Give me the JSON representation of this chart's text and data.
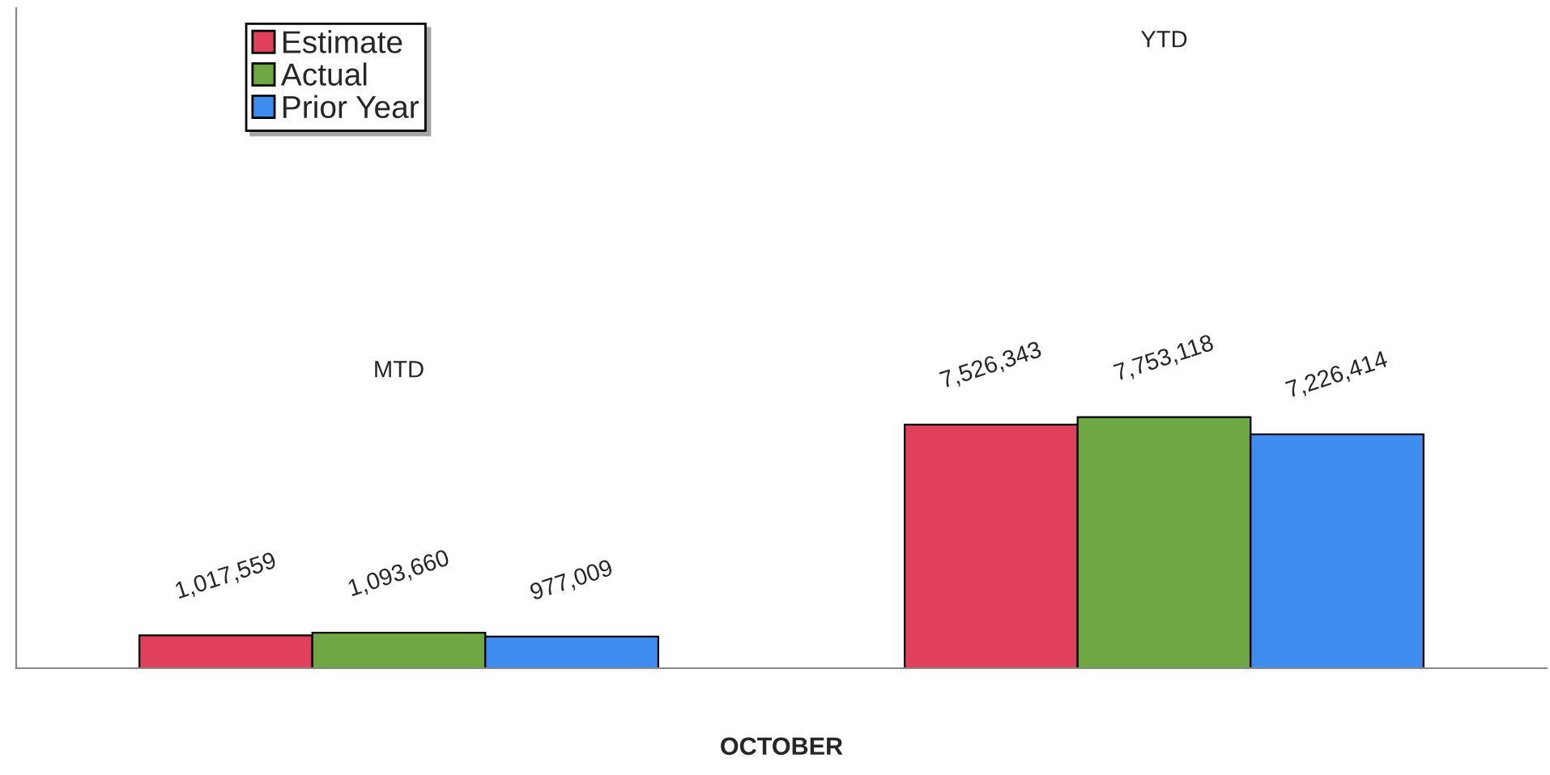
{
  "chart_data": {
    "type": "bar",
    "xlabel": "OCTOBER",
    "categories": [
      null,
      null
    ],
    "annotations": [
      "MTD",
      "YTD"
    ],
    "series": [
      {
        "name": "Estimate",
        "color": "#e0405c",
        "values": [
          1017559,
          7526343
        ],
        "value_labels": [
          "1,017,559",
          "7,526,343"
        ]
      },
      {
        "name": "Actual",
        "color": "#6fa843",
        "values": [
          1093660,
          7753118
        ],
        "value_labels": [
          "1,093,660",
          "7,753,118"
        ]
      },
      {
        "name": "Prior Year",
        "color": "#3f8cf0",
        "values": [
          977009,
          7226414
        ],
        "value_labels": [
          "977,009",
          "7,226,414"
        ]
      }
    ],
    "legend": "top left"
  }
}
